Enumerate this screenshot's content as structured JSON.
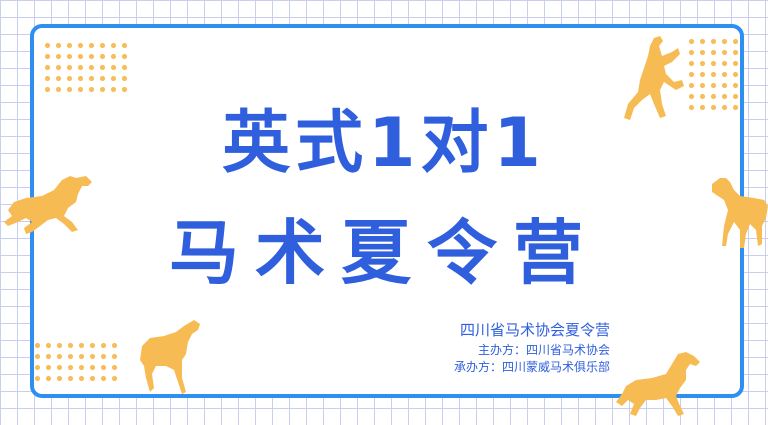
{
  "poster": {
    "title_line1": "英式1对1",
    "title_line2": "马术夏令营",
    "organizer": "四川省马术协会夏令营",
    "host": "主办方：四川省马术协会",
    "undertaker": "承办方：四川蒙威马术俱乐部"
  },
  "colors": {
    "frame": "#2e8ff0",
    "title": "#2f5fdc",
    "accent": "#f7bb54",
    "grid": "#c9cdf0"
  },
  "decorations": {
    "icons": [
      "rearing-horse-icon",
      "galloping-horse-icon",
      "standing-horse-icon",
      "standing-horse-icon",
      "trotting-horse-icon"
    ]
  }
}
